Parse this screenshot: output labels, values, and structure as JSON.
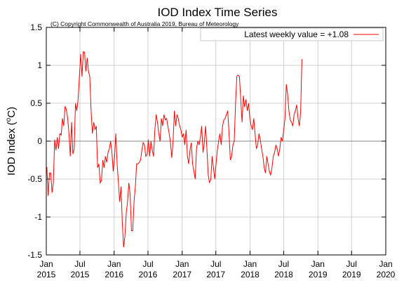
{
  "chart_data": {
    "type": "line",
    "title": "IOD Index Time Series",
    "subtitle": "(C) Copyright Commonwealth of Australia 2019, Bureau of Meteorology",
    "ylabel": "IOD Index (°C)",
    "ylabel_main": "IOD Index (",
    "ylabel_sup": "o",
    "ylabel_tail": "C)",
    "xlabel": "",
    "ylim": [
      -1.5,
      1.5
    ],
    "xlim": [
      "2015-01-01",
      "2020-01-01"
    ],
    "grid": true,
    "legend_position": "top-right",
    "zero_line": true,
    "colors": {
      "series": "#ff0000",
      "grid": "#d0d0d0",
      "zero": "#888888"
    },
    "y_ticks": [
      {
        "value": 1.5,
        "label": "1.5"
      },
      {
        "value": 1.0,
        "label": "1"
      },
      {
        "value": 0.5,
        "label": "0.5"
      },
      {
        "value": 0.0,
        "label": "0"
      },
      {
        "value": -0.5,
        "label": "-0.5"
      },
      {
        "value": -1.0,
        "label": "-1"
      },
      {
        "value": -1.5,
        "label": "-1.5"
      }
    ],
    "x_ticks": [
      {
        "date": "2015-01-01",
        "line1": "Jan",
        "line2": "2015"
      },
      {
        "date": "2015-07-01",
        "line1": "Jul",
        "line2": "2015"
      },
      {
        "date": "2016-01-01",
        "line1": "Jan",
        "line2": "2016"
      },
      {
        "date": "2016-07-01",
        "line1": "Jul",
        "line2": "2016"
      },
      {
        "date": "2017-01-01",
        "line1": "Jan",
        "line2": "2017"
      },
      {
        "date": "2017-07-01",
        "line1": "Jul",
        "line2": "2017"
      },
      {
        "date": "2018-01-01",
        "line1": "Jan",
        "line2": "2018"
      },
      {
        "date": "2018-07-01",
        "line1": "Jul",
        "line2": "2018"
      },
      {
        "date": "2019-01-01",
        "line1": "Jan",
        "line2": "2019"
      },
      {
        "date": "2019-07-01",
        "line1": "Jul",
        "line2": "2019"
      },
      {
        "date": "2020-01-01",
        "line1": "Jan",
        "line2": "2020"
      }
    ],
    "series": [
      {
        "name": "Latest weekly value = +1.08",
        "points": [
          [
            "2015-01-04",
            -0.34
          ],
          [
            "2015-01-11",
            -0.72
          ],
          [
            "2015-01-18",
            -0.42
          ],
          [
            "2015-01-25",
            -0.42
          ],
          [
            "2015-02-01",
            -0.68
          ],
          [
            "2015-02-08",
            -0.55
          ],
          [
            "2015-02-15",
            0.02
          ],
          [
            "2015-02-22",
            -0.12
          ],
          [
            "2015-03-01",
            0.05
          ],
          [
            "2015-03-08",
            -0.1
          ],
          [
            "2015-03-15",
            0.1
          ],
          [
            "2015-03-22",
            0.08
          ],
          [
            "2015-03-29",
            0.3
          ],
          [
            "2015-04-05",
            0.2
          ],
          [
            "2015-04-12",
            0.46
          ],
          [
            "2015-04-19",
            0.42
          ],
          [
            "2015-04-26",
            0.3
          ],
          [
            "2015-05-03",
            0.1
          ],
          [
            "2015-05-10",
            -0.2
          ],
          [
            "2015-05-17",
            0.25
          ],
          [
            "2015-05-24",
            -0.17
          ],
          [
            "2015-05-31",
            -0.1
          ],
          [
            "2015-06-07",
            0.5
          ],
          [
            "2015-06-14",
            0.4
          ],
          [
            "2015-06-21",
            0.55
          ],
          [
            "2015-06-28",
            0.85
          ],
          [
            "2015-07-05",
            1.15
          ],
          [
            "2015-07-12",
            0.85
          ],
          [
            "2015-07-19",
            1.18
          ],
          [
            "2015-07-26",
            1.17
          ],
          [
            "2015-08-02",
            0.92
          ],
          [
            "2015-08-09",
            1.1
          ],
          [
            "2015-08-16",
            0.92
          ],
          [
            "2015-08-23",
            0.85
          ],
          [
            "2015-08-30",
            0.4
          ],
          [
            "2015-09-06",
            0.1
          ],
          [
            "2015-09-13",
            0.25
          ],
          [
            "2015-09-20",
            0.15
          ],
          [
            "2015-09-27",
            0.2
          ],
          [
            "2015-10-04",
            -0.35
          ],
          [
            "2015-10-11",
            -0.3
          ],
          [
            "2015-10-18",
            -0.55
          ],
          [
            "2015-10-25",
            -0.52
          ],
          [
            "2015-11-01",
            -0.25
          ],
          [
            "2015-11-08",
            -0.35
          ],
          [
            "2015-11-15",
            -0.2
          ],
          [
            "2015-11-22",
            -0.28
          ],
          [
            "2015-11-29",
            -0.15
          ],
          [
            "2015-12-06",
            -0.1
          ],
          [
            "2015-12-13",
            0.0
          ],
          [
            "2015-12-20",
            -0.15
          ],
          [
            "2015-12-27",
            -0.4
          ],
          [
            "2016-01-03",
            -0.22
          ],
          [
            "2016-01-10",
            0.1
          ],
          [
            "2016-01-17",
            -0.3
          ],
          [
            "2016-01-24",
            -0.55
          ],
          [
            "2016-01-31",
            -0.8
          ],
          [
            "2016-02-07",
            -0.6
          ],
          [
            "2016-02-14",
            -1.08
          ],
          [
            "2016-02-21",
            -1.4
          ],
          [
            "2016-02-28",
            -1.25
          ],
          [
            "2016-03-06",
            -0.95
          ],
          [
            "2016-03-13",
            -0.8
          ],
          [
            "2016-03-20",
            -0.55
          ],
          [
            "2016-03-27",
            -0.7
          ],
          [
            "2016-04-03",
            -1.18
          ],
          [
            "2016-04-10",
            -1.18
          ],
          [
            "2016-04-17",
            -0.8
          ],
          [
            "2016-04-24",
            -0.6
          ],
          [
            "2016-05-01",
            -0.3
          ],
          [
            "2016-05-08",
            -0.3
          ],
          [
            "2016-05-15",
            -0.28
          ],
          [
            "2016-05-22",
            -0.25
          ],
          [
            "2016-05-29",
            -0.12
          ],
          [
            "2016-06-05",
            -0.02
          ],
          [
            "2016-06-12",
            -0.05
          ],
          [
            "2016-06-19",
            -0.2
          ],
          [
            "2016-06-26",
            -0.18
          ],
          [
            "2016-07-03",
            0.02
          ],
          [
            "2016-07-10",
            -0.2
          ],
          [
            "2016-07-17",
            0.0
          ],
          [
            "2016-07-24",
            -0.12
          ],
          [
            "2016-07-31",
            -0.2
          ],
          [
            "2016-08-07",
            0.15
          ],
          [
            "2016-08-14",
            0.35
          ],
          [
            "2016-08-21",
            0.25
          ],
          [
            "2016-08-28",
            0.1
          ],
          [
            "2016-09-04",
            0.0
          ],
          [
            "2016-09-11",
            0.3
          ],
          [
            "2016-09-18",
            0.2
          ],
          [
            "2016-09-25",
            0.35
          ],
          [
            "2016-10-02",
            0.28
          ],
          [
            "2016-10-09",
            0.3
          ],
          [
            "2016-10-16",
            0.2
          ],
          [
            "2016-10-23",
            0.1
          ],
          [
            "2016-10-30",
            -0.02
          ],
          [
            "2016-11-06",
            -0.22
          ],
          [
            "2016-11-13",
            0.0
          ],
          [
            "2016-11-20",
            0.4
          ],
          [
            "2016-11-27",
            0.2
          ],
          [
            "2016-12-04",
            0.35
          ],
          [
            "2016-12-11",
            0.3
          ],
          [
            "2016-12-18",
            0.2
          ],
          [
            "2016-12-25",
            0.15
          ],
          [
            "2017-01-01",
            0.05
          ],
          [
            "2017-01-08",
            0.1
          ],
          [
            "2017-01-15",
            -0.05
          ],
          [
            "2017-01-22",
            0.15
          ],
          [
            "2017-01-29",
            -0.2
          ],
          [
            "2017-02-05",
            -0.3
          ],
          [
            "2017-02-12",
            -0.12
          ],
          [
            "2017-02-19",
            -0.02
          ],
          [
            "2017-02-26",
            -0.3
          ],
          [
            "2017-03-05",
            -0.4
          ],
          [
            "2017-03-12",
            -0.5
          ],
          [
            "2017-03-19",
            -0.1
          ],
          [
            "2017-03-26",
            0.0
          ],
          [
            "2017-04-02",
            -0.05
          ],
          [
            "2017-04-09",
            0.05
          ],
          [
            "2017-04-16",
            0.2
          ],
          [
            "2017-04-23",
            -0.15
          ],
          [
            "2017-04-30",
            -0.02
          ],
          [
            "2017-05-07",
            0.2
          ],
          [
            "2017-05-14",
            -0.1
          ],
          [
            "2017-05-21",
            -0.45
          ],
          [
            "2017-05-28",
            -0.55
          ],
          [
            "2017-06-04",
            -0.5
          ],
          [
            "2017-06-11",
            -0.2
          ],
          [
            "2017-06-18",
            -0.35
          ],
          [
            "2017-06-25",
            -0.5
          ],
          [
            "2017-07-02",
            -0.3
          ],
          [
            "2017-07-09",
            -0.12
          ],
          [
            "2017-07-16",
            0.0
          ],
          [
            "2017-07-23",
            0.1
          ],
          [
            "2017-07-30",
            -0.05
          ],
          [
            "2017-08-06",
            0.2
          ],
          [
            "2017-08-13",
            0.28
          ],
          [
            "2017-08-20",
            0.3
          ],
          [
            "2017-08-27",
            0.35
          ],
          [
            "2017-09-03",
            0.4
          ],
          [
            "2017-09-10",
            0.1
          ],
          [
            "2017-09-17",
            -0.25
          ],
          [
            "2017-09-24",
            -0.2
          ],
          [
            "2017-10-01",
            -0.05
          ],
          [
            "2017-10-08",
            0.0
          ],
          [
            "2017-10-15",
            0.5
          ],
          [
            "2017-10-22",
            0.86
          ],
          [
            "2017-10-29",
            0.87
          ],
          [
            "2017-11-05",
            0.85
          ],
          [
            "2017-11-12",
            0.55
          ],
          [
            "2017-11-19",
            0.25
          ],
          [
            "2017-11-26",
            0.6
          ],
          [
            "2017-12-03",
            0.45
          ],
          [
            "2017-12-10",
            0.55
          ],
          [
            "2017-12-17",
            0.4
          ],
          [
            "2017-12-24",
            0.5
          ],
          [
            "2017-12-31",
            0.3
          ],
          [
            "2018-01-07",
            0.2
          ],
          [
            "2018-01-14",
            0.15
          ],
          [
            "2018-01-21",
            0.3
          ],
          [
            "2018-01-28",
            0.1
          ],
          [
            "2018-02-04",
            -0.1
          ],
          [
            "2018-02-11",
            -0.05
          ],
          [
            "2018-02-18",
            0.1
          ],
          [
            "2018-02-25",
            0.02
          ],
          [
            "2018-03-04",
            -0.1
          ],
          [
            "2018-03-11",
            -0.2
          ],
          [
            "2018-03-18",
            -0.35
          ],
          [
            "2018-03-25",
            -0.42
          ],
          [
            "2018-04-01",
            -0.2
          ],
          [
            "2018-04-08",
            -0.3
          ],
          [
            "2018-04-15",
            -0.4
          ],
          [
            "2018-04-22",
            -0.45
          ],
          [
            "2018-04-29",
            -0.35
          ],
          [
            "2018-05-06",
            -0.2
          ],
          [
            "2018-05-13",
            -0.15
          ],
          [
            "2018-05-20",
            -0.05
          ],
          [
            "2018-05-27",
            -0.1
          ],
          [
            "2018-06-03",
            -0.2
          ],
          [
            "2018-06-10",
            -0.1
          ],
          [
            "2018-06-17",
            0.05
          ],
          [
            "2018-06-24",
            0.0
          ],
          [
            "2018-07-01",
            0.15
          ],
          [
            "2018-07-08",
            0.3
          ],
          [
            "2018-07-15",
            0.75
          ],
          [
            "2018-07-22",
            0.62
          ],
          [
            "2018-07-29",
            0.4
          ],
          [
            "2018-08-05",
            0.28
          ],
          [
            "2018-08-12",
            0.25
          ],
          [
            "2018-08-19",
            0.2
          ],
          [
            "2018-08-26",
            0.35
          ],
          [
            "2018-09-02",
            0.4
          ],
          [
            "2018-09-09",
            0.48
          ],
          [
            "2018-09-16",
            0.3
          ],
          [
            "2018-09-23",
            0.2
          ],
          [
            "2018-09-30",
            0.38
          ],
          [
            "2018-10-07",
            1.08
          ]
        ]
      }
    ]
  }
}
